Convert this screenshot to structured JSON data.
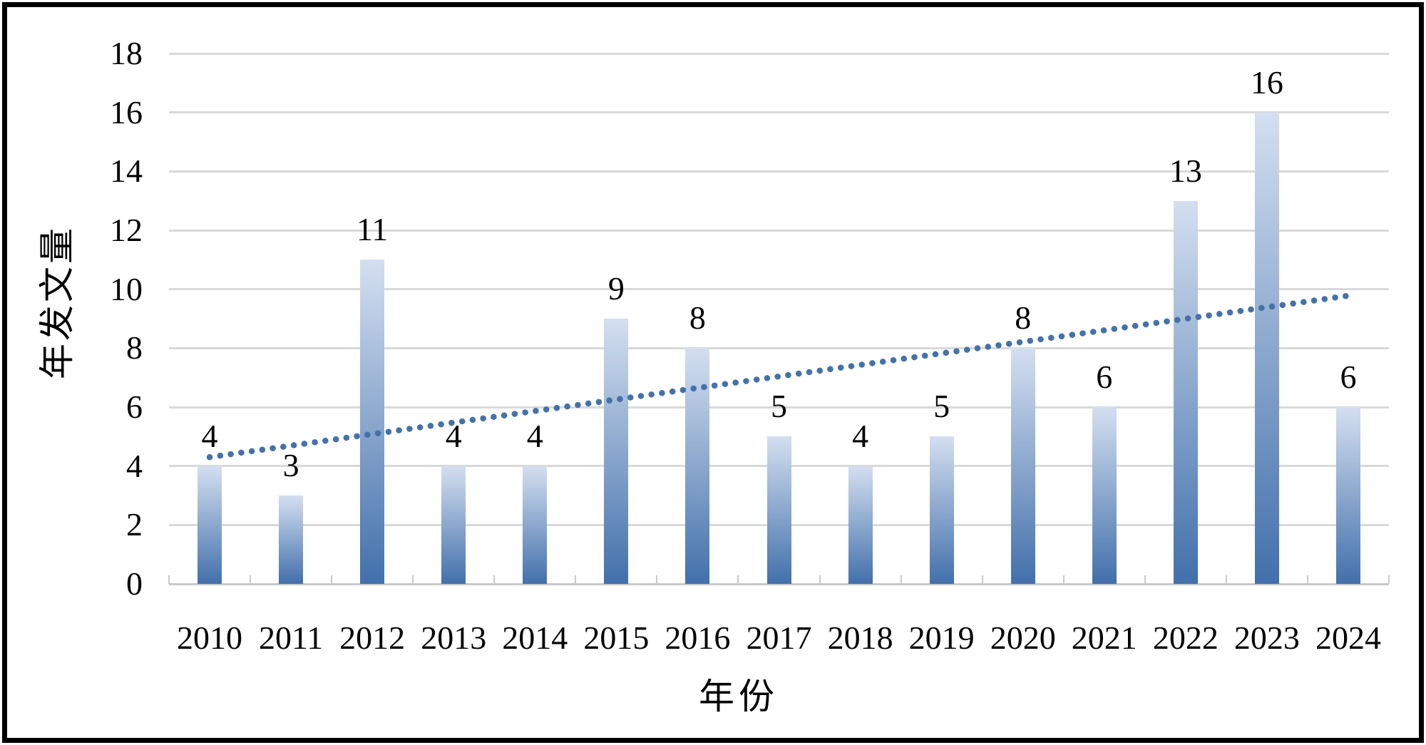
{
  "chart_data": {
    "type": "bar",
    "title": "",
    "categories": [
      "2010",
      "2011",
      "2012",
      "2013",
      "2014",
      "2015",
      "2016",
      "2017",
      "2018",
      "2019",
      "2020",
      "2021",
      "2022",
      "2023",
      "2024"
    ],
    "values": [
      4,
      3,
      11,
      4,
      4,
      9,
      8,
      5,
      4,
      5,
      8,
      6,
      13,
      16,
      6
    ],
    "data_labels": [
      "4",
      "3",
      "11",
      "4",
      "4",
      "9",
      "8",
      "5",
      "4",
      "5",
      "8",
      "6",
      "13",
      "16",
      "6"
    ],
    "xlabel": "年份",
    "ylabel": "年发文量",
    "ylim": [
      0,
      18
    ],
    "ytick_step": 2,
    "yticks": [
      "0",
      "2",
      "4",
      "6",
      "8",
      "10",
      "12",
      "14",
      "16",
      "18"
    ],
    "grid": "horizontal",
    "legend": false,
    "trendline": {
      "type": "linear",
      "style": "dotted",
      "start_value": 4.3,
      "end_value": 9.78
    }
  },
  "colors": {
    "bar_gradient_top": "#d4dff0",
    "bar_gradient_bottom": "#4270ab",
    "trendline": "#4472a8",
    "gridline": "#d9d9d9",
    "axis_line": "#c9c9c9",
    "text": "#000000",
    "frame_border": "#000000",
    "background": "#ffffff"
  }
}
